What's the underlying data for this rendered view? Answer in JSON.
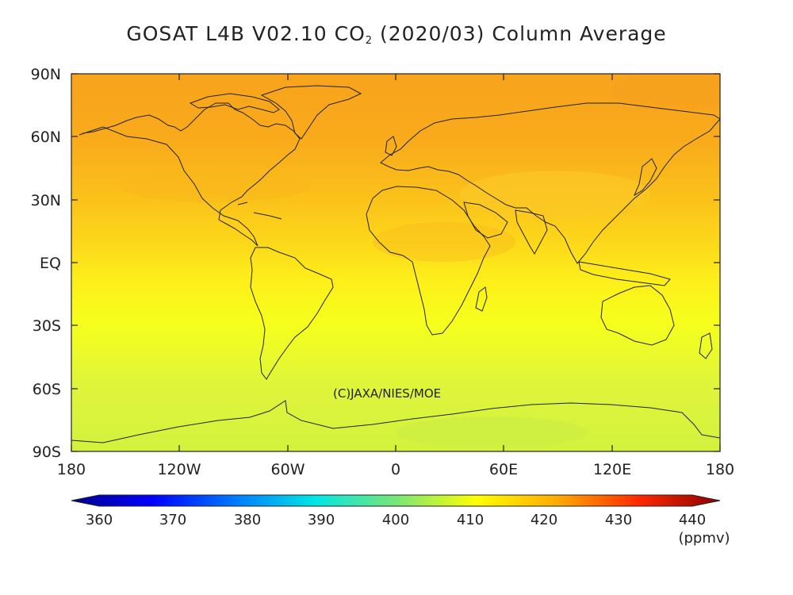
{
  "title": {
    "prefix": "GOSAT L4B V02.10 CO",
    "subscript": "2",
    "suffix": " (2020/03) Column Average"
  },
  "axes": {
    "lat_labels": [
      "90N",
      "60N",
      "30N",
      "EQ",
      "30S",
      "60S",
      "90S"
    ],
    "lon_labels": [
      "180",
      "120W",
      "60W",
      "0",
      "60E",
      "120E",
      "180"
    ]
  },
  "copyright": "(C)JAXA/NIES/MOE",
  "colorbar": {
    "labels": [
      "360",
      "370",
      "380",
      "390",
      "400",
      "410",
      "420",
      "430",
      "440"
    ],
    "unit": "(ppmv)",
    "colors": [
      "#00008c",
      "#0000ff",
      "#0078ff",
      "#00e6e6",
      "#78e678",
      "#ffff00",
      "#ffaa00",
      "#ff2800",
      "#8c0000"
    ]
  },
  "map": {
    "band_colors": [
      "#f9a51c",
      "#f9aa1a",
      "#fbc21a",
      "#fde01a",
      "#fbff1a",
      "#d8f52e"
    ]
  }
}
